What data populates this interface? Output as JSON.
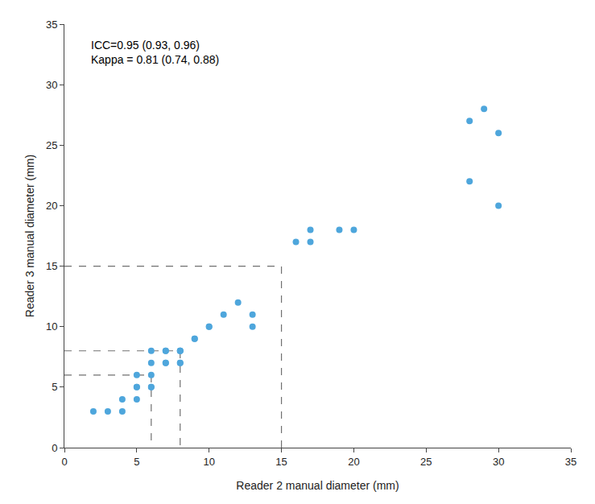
{
  "chart_data": {
    "type": "scatter",
    "x": [
      2,
      3,
      4,
      4,
      5,
      5,
      5,
      5,
      6,
      6,
      6,
      6,
      6,
      7,
      7,
      7,
      7,
      8,
      8,
      8,
      8,
      8,
      9,
      9,
      10,
      10,
      11,
      12,
      13,
      13,
      16,
      17,
      17,
      19,
      20,
      28,
      28,
      29,
      30,
      30
    ],
    "values": [
      3,
      3,
      3,
      4,
      4,
      5,
      5,
      6,
      5,
      5,
      6,
      7,
      8,
      7,
      7,
      8,
      8,
      7,
      7,
      8,
      8,
      8,
      9,
      9,
      10,
      10,
      11,
      12,
      10,
      11,
      17,
      17,
      18,
      18,
      18,
      27,
      22,
      28,
      26,
      20
    ],
    "color": "#4EA6DC",
    "marker": "circle",
    "thresholds": [
      6,
      8,
      15
    ],
    "line_style": "dashed",
    "xlabel": "Reader 2 manual diameter (mm)",
    "ylabel": "Reader 3 manual diameter (mm)",
    "xlim": [
      0,
      35
    ],
    "ylim": [
      0,
      35
    ],
    "xticks": [
      0,
      5,
      10,
      15,
      20,
      25,
      30,
      35
    ],
    "yticks": [
      0,
      5,
      10,
      15,
      20,
      25,
      30,
      35
    ],
    "annotation": "ICC=0.95 (0.93, 0.96)\nKappa = 0.81 (0.74, 0.88)",
    "grid": false
  }
}
